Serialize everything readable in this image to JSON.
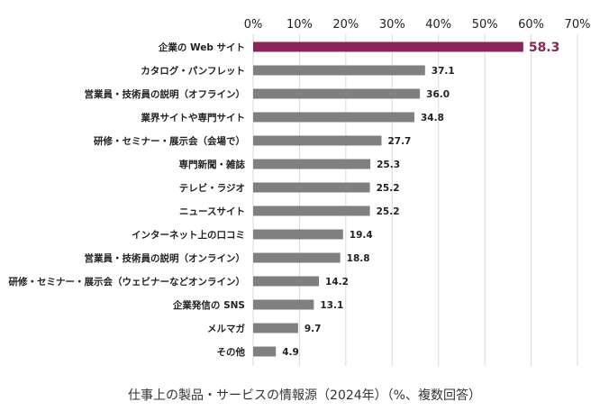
{
  "chart_data": {
    "type": "bar",
    "orientation": "horizontal",
    "title": "仕事上の製品・サービスの情報源（2024年）（%、複数回答）",
    "categories": [
      "企業の Web サイト",
      "カタログ・パンフレット",
      "営業員・技術員の説明（オフライン）",
      "業界サイトや専門サイト",
      "研修・セミナー・展示会（会場で）",
      "専門新聞・雑誌",
      "テレビ・ラジオ",
      "ニュースサイト",
      "インターネット上の口コミ",
      "営業員・技術員の説明（オンライン）",
      "研修・セミナー・展示会（ウェビナーなどオンライン）",
      "企業発信の SNS",
      "メルマガ",
      "その他"
    ],
    "values": [
      58.3,
      37.1,
      36.0,
      34.8,
      27.7,
      25.3,
      25.2,
      25.2,
      19.4,
      18.8,
      14.2,
      13.1,
      9.7,
      4.9
    ],
    "value_labels": [
      "58.3",
      "37.1",
      "36.0",
      "34.8",
      "27.7",
      "25.3",
      "25.2",
      "25.2",
      "19.4",
      "18.8",
      "14.2",
      "13.1",
      "9.7",
      "4.9"
    ],
    "xlim": [
      0,
      70
    ],
    "x_ticks": [
      "0%",
      "10%",
      "20%",
      "30%",
      "40%",
      "50%",
      "60%",
      "70%"
    ],
    "x_tick_values": [
      0,
      10,
      20,
      30,
      40,
      50,
      60,
      70
    ],
    "highlight_index": 0,
    "colors": {
      "highlight": "#8b2457",
      "bar": "#808080",
      "grid": "#d9d9d9"
    },
    "grid": true,
    "axis_position": "top"
  }
}
